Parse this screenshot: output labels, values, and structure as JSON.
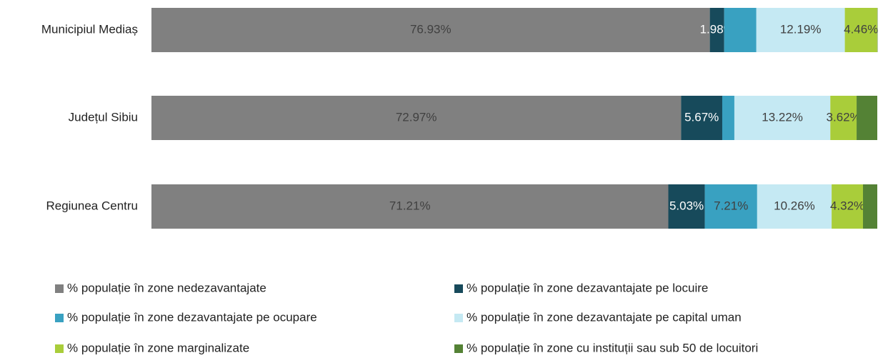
{
  "chart_data": {
    "type": "stacked-barh",
    "categories": [
      "Municipiul Mediaș",
      "Județul Sibiu",
      "Regiunea Centru"
    ],
    "xlim": [
      0,
      100
    ],
    "legend": "bottom",
    "series": [
      {
        "name": "% populație în zone nedezavantajate",
        "color": "#808080",
        "label_color": "#404040",
        "values": [
          76.93,
          72.97,
          71.21
        ],
        "value_labels": [
          "76.93%",
          "72.97%",
          "71.21%"
        ]
      },
      {
        "name": "% populație în zone dezavantajate pe locuire",
        "color": "#174a5b",
        "label_color": "#ffffff",
        "values": [
          1.98,
          5.67,
          5.03
        ],
        "value_labels": [
          "1.98%",
          "5.67%",
          "5.03%"
        ]
      },
      {
        "name": "% populație în zone dezavantajate pe ocupare",
        "color": "#39a1c1",
        "label_color": "#404040",
        "values": [
          4.43,
          1.67,
          7.21
        ],
        "value_labels": [
          null,
          null,
          "7.21%"
        ]
      },
      {
        "name": "% populație în zone dezavantajate pe capital uman",
        "color": "#c5e9f3",
        "label_color": "#404040",
        "values": [
          12.19,
          13.22,
          10.26
        ],
        "value_labels": [
          "12.19%",
          "13.22%",
          "10.26%"
        ]
      },
      {
        "name": "% populație în zone marginalizate",
        "color": "#a9cd3a",
        "label_color": "#404040",
        "values": [
          4.46,
          3.62,
          4.32
        ],
        "value_labels": [
          "4.46%",
          "3.62%",
          "4.32%"
        ]
      },
      {
        "name": "% populație în zone cu instituții sau sub 50 de locuitori",
        "color": "#548235",
        "label_color": "#404040",
        "values": [
          0.05,
          2.85,
          1.97
        ],
        "value_labels": [
          null,
          null,
          null
        ]
      }
    ]
  }
}
